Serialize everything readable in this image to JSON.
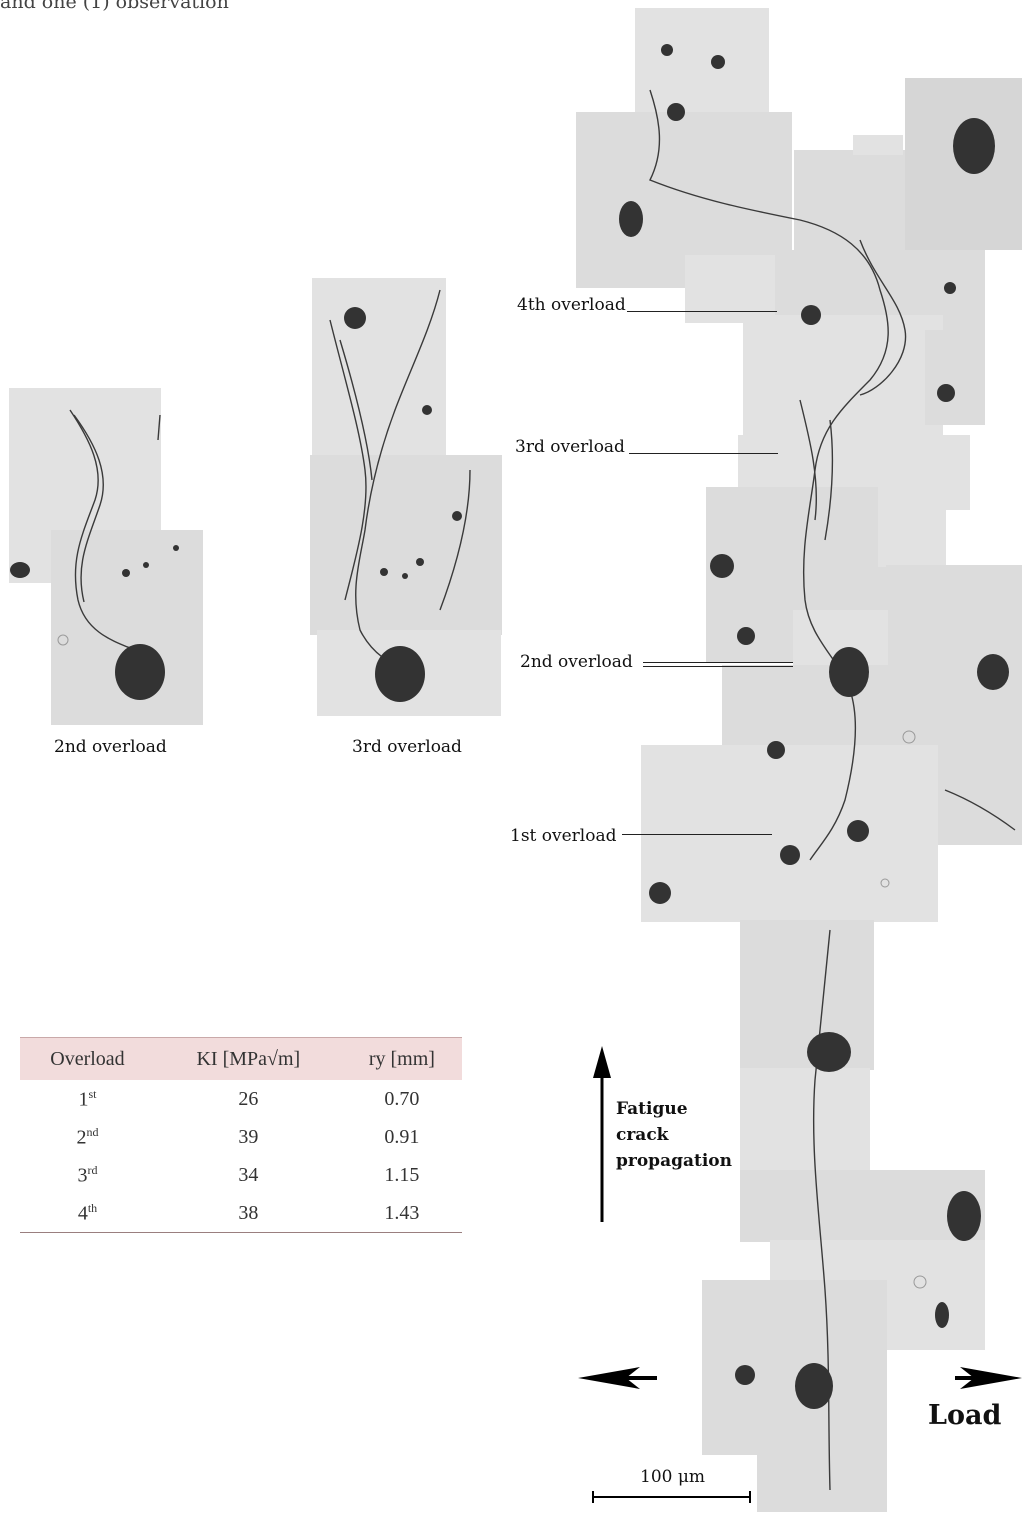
{
  "header": {
    "partial_text": "and one (1) observation"
  },
  "left_images": {
    "caption_1": "2nd overload",
    "caption_2": "3rd overload"
  },
  "overload_labels": {
    "fourth": "4th overload",
    "third": "3rd overload",
    "second": "2nd overload",
    "first": "1st overload"
  },
  "table": {
    "headers": {
      "overload": "Overload",
      "ki": "KI [MPa√m]",
      "ry": "ry [mm]"
    },
    "rows": [
      {
        "overload": "1",
        "suffix": "st",
        "ki": "26",
        "ry": "0.70"
      },
      {
        "overload": "2",
        "suffix": "nd",
        "ki": "39",
        "ry": "0.91"
      },
      {
        "overload": "3",
        "suffix": "rd",
        "ki": "34",
        "ry": "1.15"
      },
      {
        "overload": "4",
        "suffix": "th",
        "ki": "38",
        "ry": "1.43"
      }
    ]
  },
  "annotations": {
    "propagation_line1": "Fatigue",
    "propagation_line2": "crack",
    "propagation_line3": "propagation",
    "load": "Load",
    "scale_bar": "100 μm"
  },
  "colors": {
    "micrograph": "#dcdcdc",
    "inclusion": "#333333",
    "table_header_bg": "#f2dcdc"
  }
}
